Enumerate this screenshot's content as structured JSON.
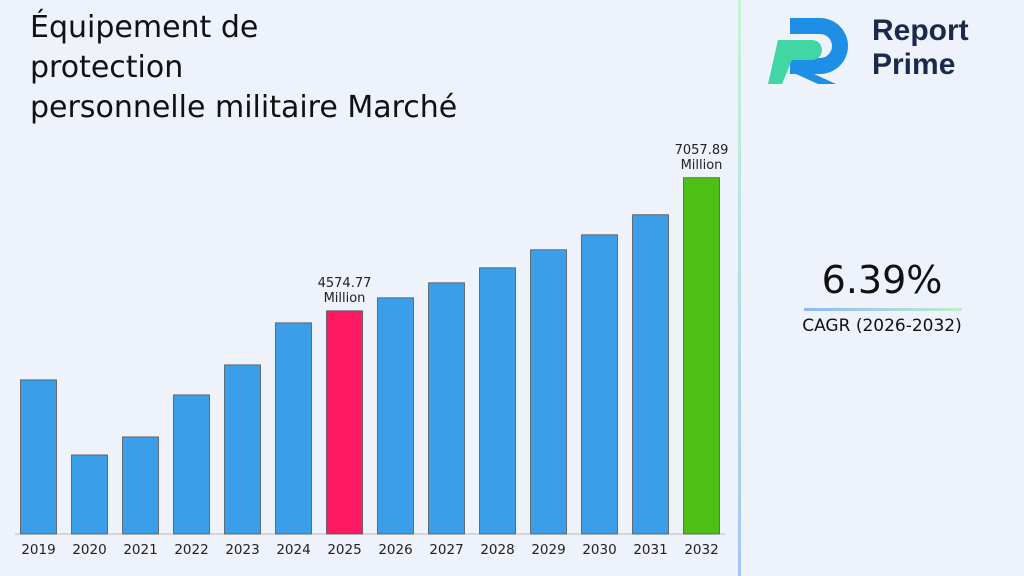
{
  "chart_data": {
    "type": "bar",
    "title": "Équipement de\nprotection\npersonnelle militaire Marché",
    "categories": [
      "2019",
      "2020",
      "2021",
      "2022",
      "2023",
      "2024",
      "2025",
      "2026",
      "2027",
      "2028",
      "2029",
      "2030",
      "2031",
      "2032"
    ],
    "values": [
      3286,
      1886,
      2222,
      3006,
      3566,
      4350,
      4574.77,
      4817,
      5097,
      5377,
      5713,
      5993,
      6367,
      7057.89
    ],
    "value_labels": [
      null,
      null,
      null,
      null,
      null,
      null,
      "4574.77 Million",
      null,
      null,
      null,
      null,
      null,
      null,
      "7057.89 Million"
    ],
    "colors": [
      "#3a9fe8",
      "#3a9fe8",
      "#3a9fe8",
      "#3a9fe8",
      "#3a9fe8",
      "#3a9fe8",
      "#fe1a63",
      "#3a9fe8",
      "#3a9fe8",
      "#3a9fe8",
      "#3a9fe8",
      "#3a9fe8",
      "#3a9fe8",
      "#4dbf16"
    ],
    "ylim": [
      411,
      7500
    ]
  },
  "brand": "Report\nPrime",
  "cagr": {
    "value": "6.39%",
    "label": "CAGR (2026-2032)"
  }
}
